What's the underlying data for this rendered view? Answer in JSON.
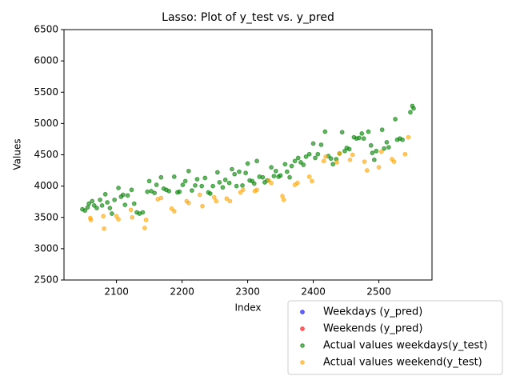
{
  "chart_data": {
    "type": "scatter",
    "title": "Lasso: Plot of y_test vs. y_pred",
    "xlabel": "Index",
    "ylabel": "Values",
    "xlim": [
      2020,
      2581
    ],
    "ylim": [
      2500,
      6500
    ],
    "xticks": [
      2100,
      2200,
      2300,
      2400,
      2500
    ],
    "yticks": [
      2500,
      3000,
      3500,
      4000,
      4500,
      5000,
      5500,
      6000,
      6500
    ],
    "legend": "lower right",
    "series": [
      {
        "name": "Weekdays (y_pred)",
        "color": "#0000ff",
        "x": [],
        "values": []
      },
      {
        "name": "Weekends (y_pred)",
        "color": "#ff0000",
        "x": [],
        "values": []
      },
      {
        "name": "Actual values weekdays(y_test)",
        "color": "#008000",
        "x": [
          2048,
          2052,
          2056,
          2058,
          2063,
          2066,
          2070,
          2075,
          2078,
          2083,
          2086,
          2090,
          2093,
          2097,
          2103,
          2107,
          2110,
          2113,
          2117,
          2123,
          2127,
          2131,
          2135,
          2140,
          2147,
          2150,
          2153,
          2158,
          2161,
          2168,
          2172,
          2176,
          2180,
          2188,
          2193,
          2196,
          2201,
          2205,
          2210,
          2215,
          2220,
          2223,
          2230,
          2235,
          2240,
          2243,
          2247,
          2254,
          2257,
          2262,
          2266,
          2272,
          2276,
          2280,
          2283,
          2287,
          2292,
          2297,
          2300,
          2303,
          2307,
          2310,
          2314,
          2318,
          2323,
          2326,
          2330,
          2336,
          2340,
          2343,
          2347,
          2350,
          2357,
          2360,
          2364,
          2367,
          2372,
          2377,
          2381,
          2385,
          2389,
          2394,
          2400,
          2403,
          2407,
          2412,
          2418,
          2423,
          2427,
          2430,
          2435,
          2440,
          2444,
          2448,
          2451,
          2455,
          2462,
          2466,
          2470,
          2474,
          2477,
          2484,
          2488,
          2490,
          2493,
          2496,
          2505,
          2508,
          2512,
          2515,
          2525,
          2528,
          2532,
          2536,
          2548,
          2551,
          2553
        ],
        "values": [
          3630,
          3610,
          3660,
          3720,
          3760,
          3690,
          3650,
          3780,
          3690,
          3870,
          3740,
          3650,
          3560,
          3780,
          3970,
          3830,
          3860,
          3700,
          3850,
          3940,
          3720,
          3580,
          3560,
          3580,
          3910,
          4080,
          3920,
          3890,
          4020,
          4140,
          3960,
          3940,
          3920,
          4150,
          3900,
          3910,
          4020,
          4080,
          4240,
          3930,
          4010,
          4110,
          4000,
          4130,
          3900,
          3880,
          4000,
          4220,
          4060,
          3980,
          4100,
          4050,
          4270,
          4190,
          4000,
          4230,
          4010,
          4210,
          4360,
          4090,
          4080,
          4040,
          4400,
          4150,
          4140,
          4060,
          4090,
          4300,
          4160,
          4240,
          4150,
          4170,
          4350,
          4230,
          4140,
          4320,
          4400,
          4450,
          4380,
          4340,
          4470,
          4510,
          4680,
          4450,
          4510,
          4660,
          4870,
          4480,
          4440,
          4350,
          4430,
          4520,
          4860,
          4560,
          4610,
          4590,
          4780,
          4760,
          4770,
          4840,
          4760,
          4870,
          4650,
          4530,
          4420,
          4560,
          4900,
          4600,
          4700,
          4620,
          5070,
          4740,
          4760,
          4740,
          5180,
          5280,
          5240
        ]
      },
      {
        "name": "Actual values weekend(y_test)",
        "color": "#ffa500",
        "x": [
          2060,
          2061,
          2080,
          2081,
          2100,
          2103,
          2122,
          2124,
          2143,
          2145,
          2163,
          2168,
          2184,
          2188,
          2207,
          2210,
          2227,
          2231,
          2249,
          2252,
          2268,
          2273,
          2289,
          2293,
          2311,
          2314,
          2332,
          2336,
          2353,
          2355,
          2372,
          2376,
          2394,
          2398,
          2416,
          2419,
          2436,
          2440,
          2456,
          2460,
          2478,
          2482,
          2500,
          2504,
          2520,
          2523,
          2540,
          2545
        ],
        "values": [
          3490,
          3460,
          3520,
          3320,
          3520,
          3470,
          3620,
          3500,
          3330,
          3460,
          3790,
          3810,
          3640,
          3600,
          3760,
          3730,
          3860,
          3680,
          3820,
          3760,
          3800,
          3760,
          3900,
          3940,
          3920,
          3940,
          4090,
          4050,
          3840,
          3780,
          4020,
          4050,
          4150,
          4080,
          4400,
          4470,
          4380,
          4520,
          4420,
          4500,
          4390,
          4250,
          4300,
          4550,
          4430,
          4390,
          4510,
          4780
        ]
      }
    ]
  }
}
